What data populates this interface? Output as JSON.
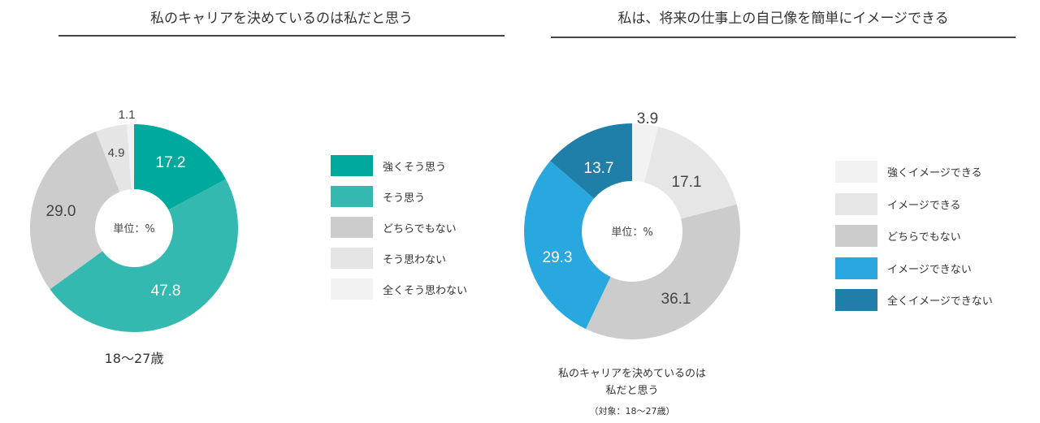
{
  "chart_data": [
    {
      "type": "pie",
      "title": "私のキャリアを決めているのは私だと思う",
      "center_label": "単位：%",
      "caption": "18〜27歳",
      "categories": [
        "強くそう思う",
        "そう思う",
        "どちらでもない",
        "そう思わない",
        "全くそう思わない"
      ],
      "values": [
        17.2,
        47.8,
        29.0,
        4.9,
        1.1
      ],
      "value_labels": [
        "17.2",
        "47.8",
        "29.0",
        "4.9",
        "1.1"
      ],
      "colors": [
        "#00a99d",
        "#33b9b0",
        "#cccccc",
        "#e5e5e5",
        "#f2f2f2"
      ],
      "label_colors": [
        "#ffffff",
        "#ffffff",
        "#444444",
        "#444444",
        "#444444"
      ],
      "donut": true,
      "legend": "right"
    },
    {
      "type": "pie",
      "title": "私は、将来の仕事上の自己像を簡単にイメージできる",
      "center_label": "単位：%",
      "caption_lines": [
        "私のキャリアを決めているのは",
        "私だと思う",
        "（対象：18〜27歳）"
      ],
      "categories": [
        "強くイメージできる",
        "イメージできる",
        "どちらでもない",
        "イメージできない",
        "全くイメージできない"
      ],
      "values": [
        3.9,
        17.1,
        36.1,
        29.3,
        13.7
      ],
      "value_labels": [
        "3.9",
        "17.1",
        "36.1",
        "29.3",
        "13.7"
      ],
      "colors": [
        "#f2f2f2",
        "#e6e6e6",
        "#cccccc",
        "#29a8e0",
        "#1f7fa8"
      ],
      "label_colors": [
        "#444444",
        "#444444",
        "#444444",
        "#ffffff",
        "#ffffff"
      ],
      "donut": true,
      "legend": "right"
    }
  ]
}
